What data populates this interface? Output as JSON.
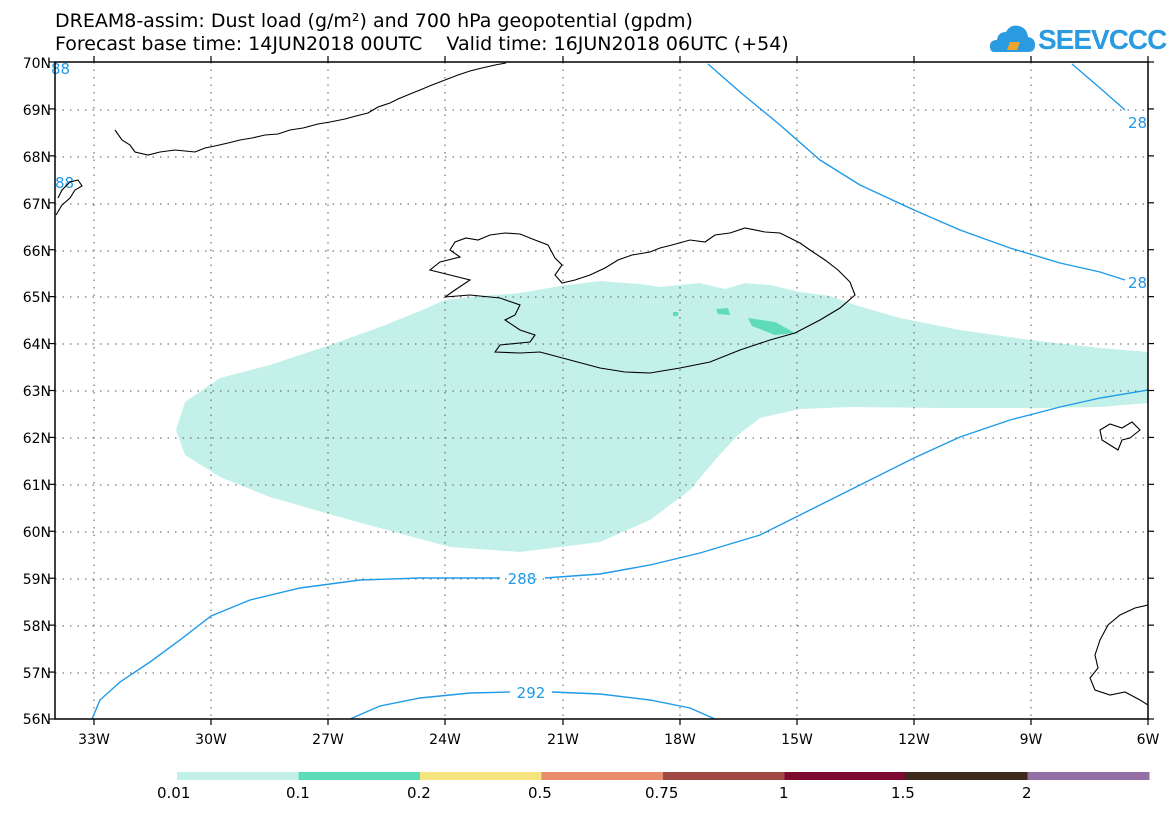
{
  "header": {
    "line1": "DREAM8-assim: Dust load (g/m²) and 700 hPa geopotential (gpdm)",
    "line2": "Forecast base time: 14JUN2018 00UTC    Valid time: 16JUN2018 06UTC (+54)"
  },
  "logo": {
    "text": "SEEVCCC",
    "icon": "cloud-icon",
    "color": "#2a9be0"
  },
  "axes": {
    "lat_labels": [
      "70N",
      "69N",
      "68N",
      "67N",
      "66N",
      "65N",
      "64N",
      "63N",
      "62N",
      "61N",
      "60N",
      "59N",
      "58N",
      "57N",
      "56N"
    ],
    "lon_labels": [
      "33W",
      "30W",
      "27W",
      "24W",
      "21W",
      "18W",
      "15W",
      "12W",
      "9W",
      "6W"
    ]
  },
  "contours": {
    "labels": [
      "288",
      "292",
      "88",
      "88",
      "28",
      "28"
    ],
    "color": "#1e9be8"
  },
  "legend": {
    "thresholds": [
      "0.01",
      "0.1",
      "0.2",
      "0.5",
      "0.75",
      "1",
      "1.5",
      "2"
    ],
    "colors": [
      "#c4f0ea",
      "#5ddcb7",
      "#f5e47e",
      "#e98c6b",
      "#a14a44",
      "#7d0b30",
      "#3d2a1a",
      "#9470a4"
    ]
  }
}
